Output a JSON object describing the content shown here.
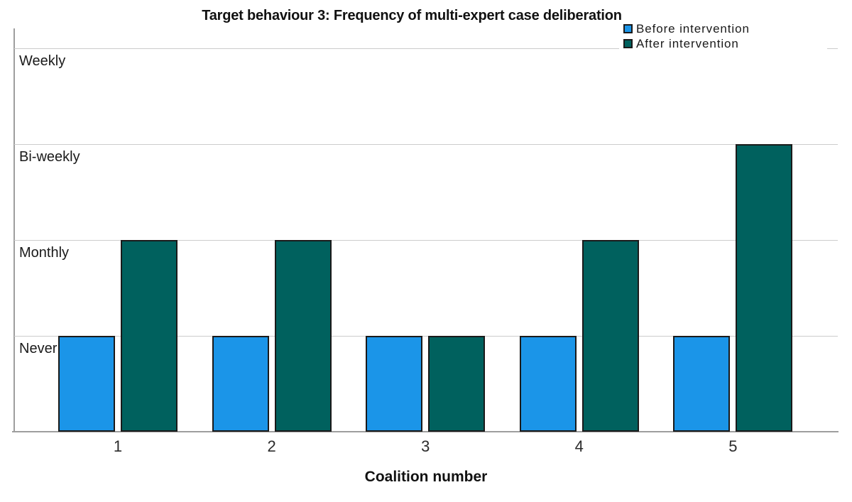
{
  "title": "Target behaviour 3: Frequency of multi-expert case deliberation",
  "legend": {
    "items": [
      {
        "label": "Before intervention",
        "color": "#1B95E8"
      },
      {
        "label": "After intervention",
        "color": "#00615E"
      }
    ]
  },
  "axis": {
    "x_title": "Coalition number"
  },
  "colors": {
    "before_bar": "#1B95E8",
    "after_bar": "#00615E",
    "bar_border": "#1a1a1a",
    "gridline": "#cccccc",
    "axis_line": "#9e9e9e"
  },
  "chart_data": {
    "type": "bar",
    "title": "Target behaviour 3: Frequency of multi-expert case deliberation",
    "xlabel": "Coalition number",
    "ylabel": "",
    "categories": [
      "1",
      "2",
      "3",
      "4",
      "5"
    ],
    "y_ticks": [
      {
        "value": 1,
        "label": "Never"
      },
      {
        "value": 2,
        "label": "Monthly"
      },
      {
        "value": 3,
        "label": "Bi-weekly"
      },
      {
        "value": 4,
        "label": "Weekly"
      }
    ],
    "ylim": [
      0,
      4.2
    ],
    "grid": true,
    "legend_position": "top-right",
    "series": [
      {
        "name": "Before intervention",
        "color": "#1B95E8",
        "values": [
          1,
          1,
          1,
          1,
          1
        ],
        "value_labels": [
          "Never",
          "Never",
          "Never",
          "Never",
          "Never"
        ]
      },
      {
        "name": "After intervention",
        "color": "#00615E",
        "values": [
          2,
          2,
          1,
          2,
          3
        ],
        "value_labels": [
          "Monthly",
          "Monthly",
          "Never",
          "Monthly",
          "Bi-weekly"
        ]
      }
    ]
  }
}
